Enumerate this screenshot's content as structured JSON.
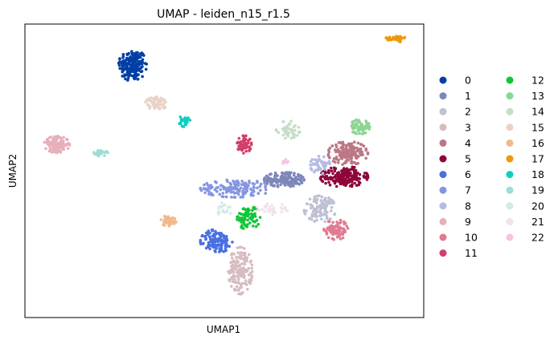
{
  "chart_data": {
    "type": "scatter",
    "title": "UMAP - leiden_n15_r1.5",
    "xlabel": "UMAP1",
    "ylabel": "UMAP2",
    "xlim": [
      0,
      100
    ],
    "ylim": [
      0,
      100
    ],
    "grid": false,
    "ticks": false,
    "legend_placement": "right",
    "legend_columns": 2,
    "series": [
      {
        "name": "0",
        "color": "#023fa5",
        "clusters": [
          {
            "center": [
              27,
              86
            ],
            "radius": [
              3.5,
              5.5
            ],
            "n": 200
          }
        ]
      },
      {
        "name": "1",
        "color": "#7d87b9",
        "clusters": [
          {
            "center": [
              65,
              47
            ],
            "radius": [
              5,
              2.5
            ],
            "n": 160
          }
        ]
      },
      {
        "name": "2",
        "color": "#bec1d4",
        "clusters": [
          {
            "center": [
              74,
              37
            ],
            "radius": [
              4,
              4.5
            ],
            "n": 120
          }
        ]
      },
      {
        "name": "3",
        "color": "#d6bcc0",
        "clusters": [
          {
            "center": [
              54,
              16
            ],
            "radius": [
              3,
              8
            ],
            "n": 150
          }
        ]
      },
      {
        "name": "4",
        "color": "#bb7784",
        "clusters": [
          {
            "center": [
              81,
              56
            ],
            "radius": [
              5,
              4
            ],
            "n": 150
          }
        ]
      },
      {
        "name": "5",
        "color": "#8e063b",
        "clusters": [
          {
            "center": [
              80,
              48
            ],
            "radius": [
              6,
              3.5
            ],
            "n": 180
          }
        ]
      },
      {
        "name": "6",
        "color": "#4a6fe3",
        "clusters": [
          {
            "center": [
              48,
              26
            ],
            "radius": [
              4,
              4
            ],
            "n": 130
          }
        ]
      },
      {
        "name": "7",
        "color": "#8595e1",
        "clusters": [
          {
            "center": [
              53,
              44
            ],
            "radius": [
              9,
              3
            ],
            "n": 150
          }
        ]
      },
      {
        "name": "8",
        "color": "#b5bbe3",
        "clusters": [
          {
            "center": [
              74,
              52
            ],
            "radius": [
              2.5,
              3
            ],
            "n": 50
          }
        ]
      },
      {
        "name": "9",
        "color": "#e6afb9",
        "clusters": [
          {
            "center": [
              8,
              59
            ],
            "radius": [
              3.2,
              2.8
            ],
            "n": 110
          }
        ]
      },
      {
        "name": "10",
        "color": "#e07b91",
        "clusters": [
          {
            "center": [
              78,
              30
            ],
            "radius": [
              3,
              3.5
            ],
            "n": 90
          }
        ]
      },
      {
        "name": "11",
        "color": "#d33f6a",
        "clusters": [
          {
            "center": [
              55,
              59
            ],
            "radius": [
              1.8,
              3
            ],
            "n": 60
          }
        ]
      },
      {
        "name": "12",
        "color": "#11c638",
        "clusters": [
          {
            "center": [
              56,
              34
            ],
            "radius": [
              3,
              4
            ],
            "n": 80
          }
        ]
      },
      {
        "name": "13",
        "color": "#8dd593",
        "clusters": [
          {
            "center": [
              84,
              65
            ],
            "radius": [
              2.5,
              2.5
            ],
            "n": 60
          }
        ]
      },
      {
        "name": "14",
        "color": "#c6dec7",
        "clusters": [
          {
            "center": [
              66,
              64
            ],
            "radius": [
              3,
              3
            ],
            "n": 55
          }
        ]
      },
      {
        "name": "15",
        "color": "#ead3c6",
        "clusters": [
          {
            "center": [
              33,
              73
            ],
            "radius": [
              2.8,
              2.2
            ],
            "n": 60
          }
        ]
      },
      {
        "name": "16",
        "color": "#f0b98d",
        "clusters": [
          {
            "center": [
              36,
              33
            ],
            "radius": [
              2,
              1.8
            ],
            "n": 40
          }
        ]
      },
      {
        "name": "17",
        "color": "#ef9708",
        "clusters": [
          {
            "center": [
              93,
              95
            ],
            "radius": [
              2.5,
              1.2
            ],
            "n": 40
          }
        ]
      },
      {
        "name": "18",
        "color": "#0fcfc0",
        "clusters": [
          {
            "center": [
              40,
              67
            ],
            "radius": [
              1.4,
              2
            ],
            "n": 30
          }
        ]
      },
      {
        "name": "19",
        "color": "#9cded6",
        "clusters": [
          {
            "center": [
              19,
              56
            ],
            "radius": [
              1.8,
              1
            ],
            "n": 25
          }
        ]
      },
      {
        "name": "20",
        "color": "#d5eae7",
        "clusters": [
          {
            "center": [
              50,
              37
            ],
            "radius": [
              2,
              2.5
            ],
            "n": 20
          }
        ]
      },
      {
        "name": "21",
        "color": "#f3e1eb",
        "clusters": [
          {
            "center": [
              62,
              37
            ],
            "radius": [
              4,
              2
            ],
            "n": 30
          }
        ]
      },
      {
        "name": "22",
        "color": "#f6c4e1",
        "clusters": [
          {
            "center": [
              65,
              53
            ],
            "radius": [
              1,
              1
            ],
            "n": 8
          }
        ]
      }
    ]
  }
}
